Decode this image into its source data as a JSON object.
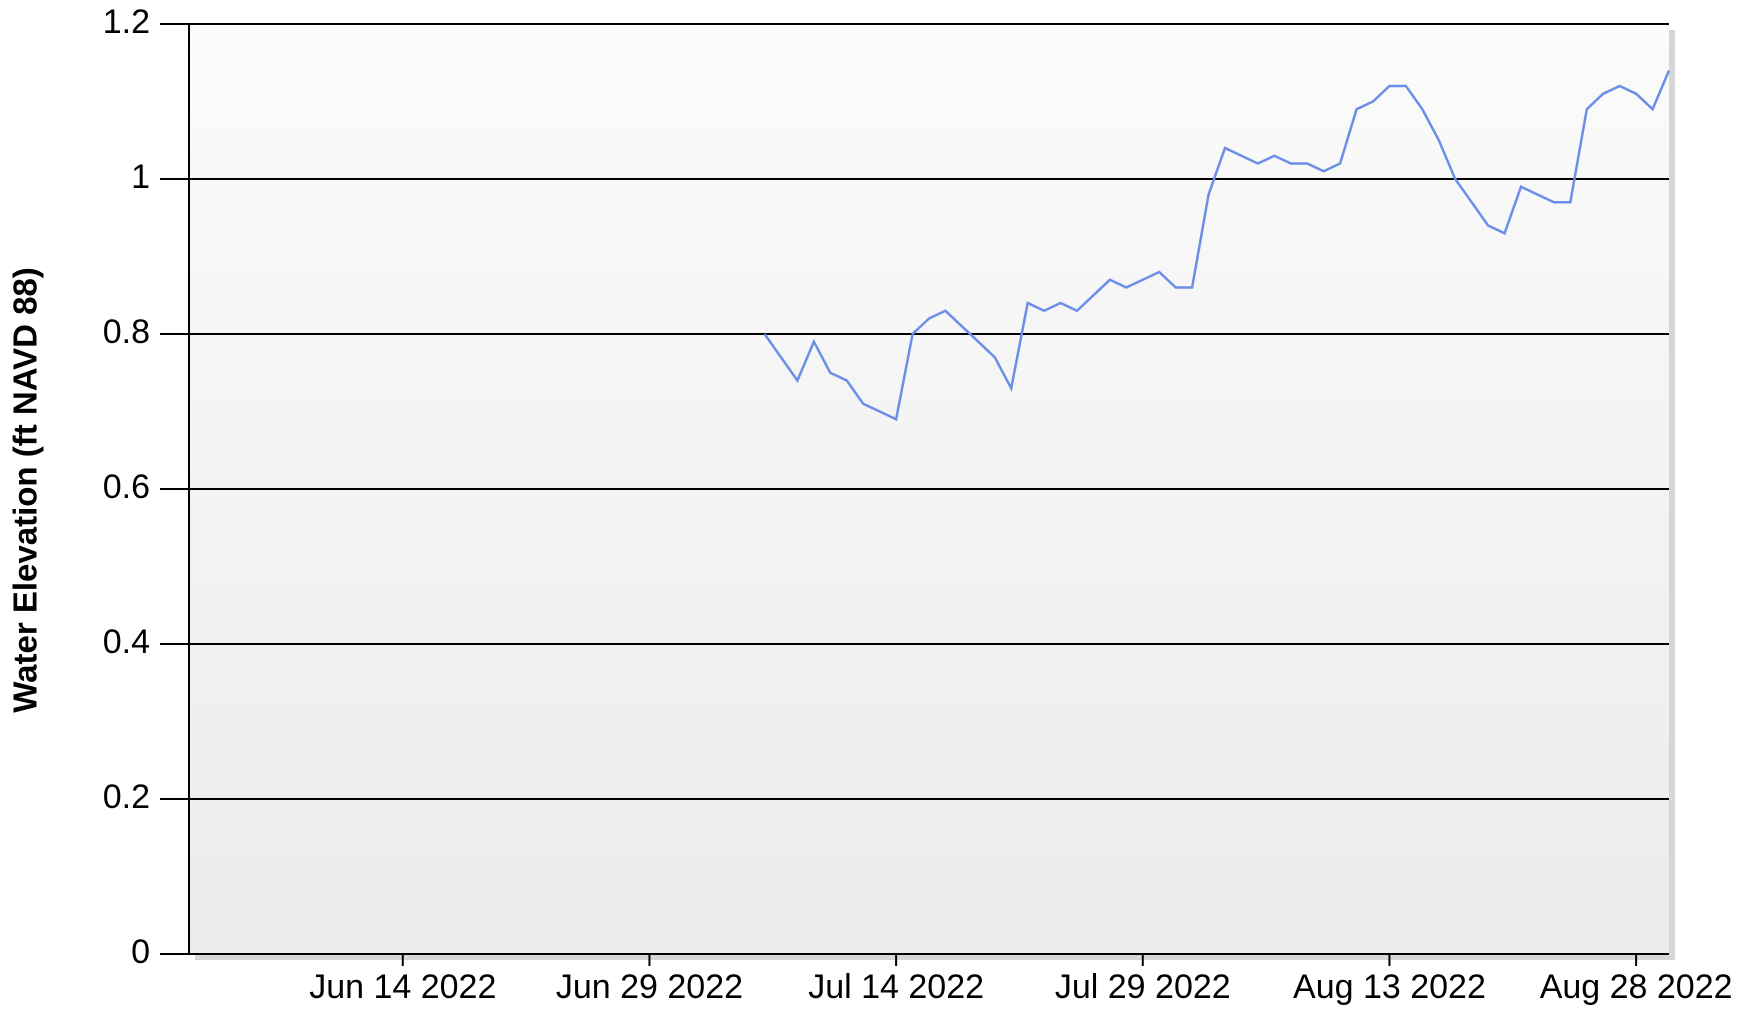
{
  "chart_data": {
    "type": "line",
    "y_label": "Water Elevation (ft NAVD 88)",
    "x": [
      "2022-07-06",
      "2022-07-07",
      "2022-07-08",
      "2022-07-09",
      "2022-07-10",
      "2022-07-11",
      "2022-07-12",
      "2022-07-13",
      "2022-07-14",
      "2022-07-15",
      "2022-07-16",
      "2022-07-17",
      "2022-07-18",
      "2022-07-19",
      "2022-07-20",
      "2022-07-21",
      "2022-07-22",
      "2022-07-23",
      "2022-07-24",
      "2022-07-25",
      "2022-07-26",
      "2022-07-27",
      "2022-07-28",
      "2022-07-29",
      "2022-07-30",
      "2022-07-31",
      "2022-08-01",
      "2022-08-02",
      "2022-08-03",
      "2022-08-04",
      "2022-08-05",
      "2022-08-06",
      "2022-08-07",
      "2022-08-08",
      "2022-08-09",
      "2022-08-10",
      "2022-08-11",
      "2022-08-12",
      "2022-08-13",
      "2022-08-14",
      "2022-08-15",
      "2022-08-16",
      "2022-08-17",
      "2022-08-18",
      "2022-08-19",
      "2022-08-20",
      "2022-08-21",
      "2022-08-22",
      "2022-08-23",
      "2022-08-24",
      "2022-08-25",
      "2022-08-26",
      "2022-08-27",
      "2022-08-28",
      "2022-08-29",
      "2022-08-30"
    ],
    "series": [
      {
        "color": "#6b8ee8",
        "values": [
          0.8,
          0.77,
          0.74,
          0.79,
          0.75,
          0.74,
          0.71,
          0.7,
          0.69,
          0.8,
          0.82,
          0.83,
          0.81,
          0.79,
          0.77,
          0.73,
          0.84,
          0.83,
          0.84,
          0.83,
          0.85,
          0.87,
          0.86,
          0.87,
          0.88,
          0.86,
          0.86,
          0.98,
          1.04,
          1.03,
          1.02,
          1.03,
          1.02,
          1.02,
          1.01,
          1.02,
          1.09,
          1.1,
          1.12,
          1.12,
          1.09,
          1.05,
          1.0,
          0.97,
          0.94,
          0.93,
          0.99,
          0.98,
          0.97,
          0.97,
          1.09,
          1.11,
          1.12,
          1.11,
          1.09,
          1.14
        ]
      }
    ],
    "xlim": [
      "2022-06-01",
      "2022-08-30"
    ],
    "xticks": [
      {
        "value": "2022-06-14",
        "label": "Jun 14 2022"
      },
      {
        "value": "2022-06-29",
        "label": "Jun 29 2022"
      },
      {
        "value": "2022-07-14",
        "label": "Jul 14 2022"
      },
      {
        "value": "2022-07-29",
        "label": "Jul 29 2022"
      },
      {
        "value": "2022-08-13",
        "label": "Aug 13 2022"
      },
      {
        "value": "2022-08-28",
        "label": "Aug 28 2022"
      }
    ],
    "ylim": [
      0,
      1.2
    ],
    "yticks": [
      0,
      0.2,
      0.4,
      0.6,
      0.8,
      1,
      1.2
    ],
    "grid": true
  }
}
